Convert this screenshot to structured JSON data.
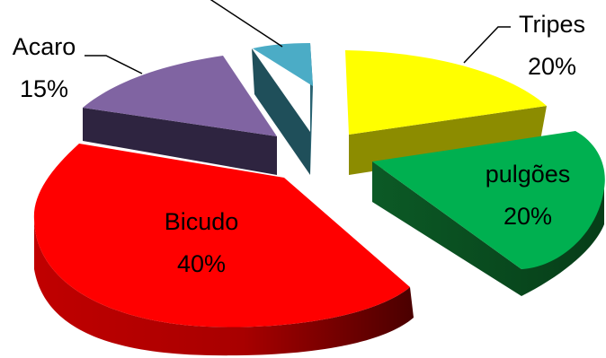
{
  "chart_data": {
    "type": "pie",
    "style": "3d exploded",
    "slices": [
      {
        "name": "Tripes",
        "percent": "20%",
        "value": 20,
        "color": "#ffff00",
        "label_color": "#000000"
      },
      {
        "name": "pulgões",
        "percent": "20%",
        "value": 20,
        "color": "#00b050",
        "label_color": "#000000"
      },
      {
        "name": "Bicudo",
        "percent": "40%",
        "value": 40,
        "color": "#ff0000",
        "label_color": "#000000"
      },
      {
        "name": "Acaro",
        "percent": "15%",
        "value": 15,
        "color": "#8064a2",
        "label_color": "#000000"
      },
      {
        "name": "",
        "percent": "",
        "value": 5,
        "color": "#4bacc6",
        "label_color": "#000000"
      }
    ]
  }
}
